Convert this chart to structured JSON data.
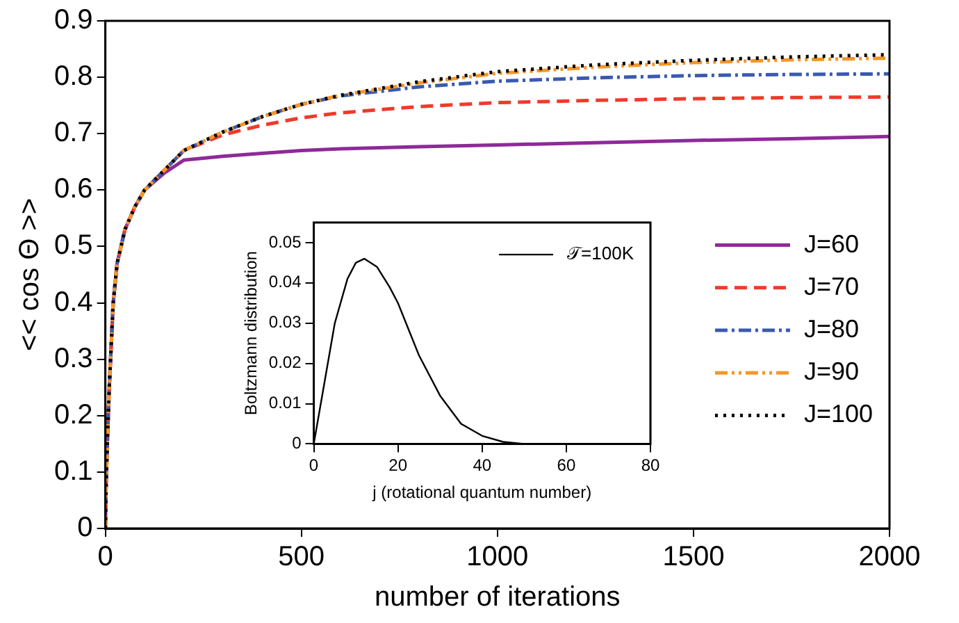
{
  "chart_data": [
    {
      "type": "line",
      "xlabel": "number of iterations",
      "ylabel": "<< cos Θ >>",
      "x": [
        0,
        2,
        5,
        10,
        20,
        30,
        50,
        75,
        100,
        150,
        200,
        300,
        400,
        500,
        600,
        800,
        1000,
        1250,
        1500,
        1750,
        2000
      ],
      "xlim": [
        0,
        2000
      ],
      "ylim": [
        0,
        0.9
      ],
      "xticks": [
        0,
        500,
        1000,
        1500,
        2000
      ],
      "yticks": [
        0,
        0.1,
        0.2,
        0.3,
        0.4,
        0.5,
        0.6,
        0.7,
        0.8,
        0.9
      ],
      "legend": "right",
      "grid": false,
      "series": [
        {
          "name": "J=60",
          "color": "#8e2a99",
          "line_style": "solid",
          "values": [
            0,
            0.08,
            0.15,
            0.25,
            0.4,
            0.47,
            0.53,
            0.57,
            0.6,
            0.63,
            0.653,
            0.66,
            0.665,
            0.67,
            0.673,
            0.677,
            0.68,
            0.684,
            0.688,
            0.691,
            0.695
          ]
        },
        {
          "name": "J=70",
          "color": "#f03a2a",
          "line_style": "dashed",
          "values": [
            0,
            0.08,
            0.15,
            0.25,
            0.4,
            0.47,
            0.53,
            0.57,
            0.6,
            0.635,
            0.67,
            0.698,
            0.715,
            0.728,
            0.737,
            0.748,
            0.755,
            0.759,
            0.762,
            0.764,
            0.765
          ]
        },
        {
          "name": "J=80",
          "color": "#3a5ab0",
          "line_style": "dashdot",
          "values": [
            0,
            0.08,
            0.15,
            0.25,
            0.4,
            0.47,
            0.53,
            0.57,
            0.6,
            0.635,
            0.67,
            0.703,
            0.73,
            0.752,
            0.767,
            0.783,
            0.793,
            0.799,
            0.803,
            0.805,
            0.806
          ]
        },
        {
          "name": "J=90",
          "color": "#f5962a",
          "line_style": "dashdotdot",
          "values": [
            0,
            0.08,
            0.15,
            0.25,
            0.4,
            0.47,
            0.53,
            0.57,
            0.6,
            0.635,
            0.67,
            0.703,
            0.73,
            0.752,
            0.768,
            0.79,
            0.807,
            0.818,
            0.826,
            0.831,
            0.834
          ]
        },
        {
          "name": "J=100",
          "color": "#000000",
          "line_style": "dotted",
          "values": [
            0,
            0.08,
            0.15,
            0.25,
            0.4,
            0.47,
            0.53,
            0.57,
            0.6,
            0.635,
            0.67,
            0.703,
            0.73,
            0.752,
            0.768,
            0.792,
            0.81,
            0.822,
            0.83,
            0.836,
            0.84
          ]
        }
      ]
    },
    {
      "type": "line",
      "xlabel": "j (rotational quantum number)",
      "ylabel": "Boltzmann distribution",
      "x": [
        0,
        2,
        5,
        8,
        10,
        12,
        15,
        18,
        20,
        25,
        30,
        35,
        40,
        45,
        50,
        60,
        70,
        80
      ],
      "xlim": [
        0,
        80
      ],
      "ylim": [
        0,
        0.055
      ],
      "xticks": [
        0,
        20,
        40,
        60,
        80
      ],
      "yticks": [
        0,
        0.01,
        0.02,
        0.03,
        0.04,
        0.05
      ],
      "legend": "top right",
      "grid": false,
      "series": [
        {
          "name": "𝒯=100K",
          "color": "#000000",
          "line_style": "solid",
          "values": [
            0,
            0.012,
            0.03,
            0.041,
            0.045,
            0.046,
            0.044,
            0.039,
            0.035,
            0.022,
            0.012,
            0.005,
            0.002,
            0.0005,
            0,
            0,
            0,
            0
          ]
        }
      ]
    }
  ]
}
